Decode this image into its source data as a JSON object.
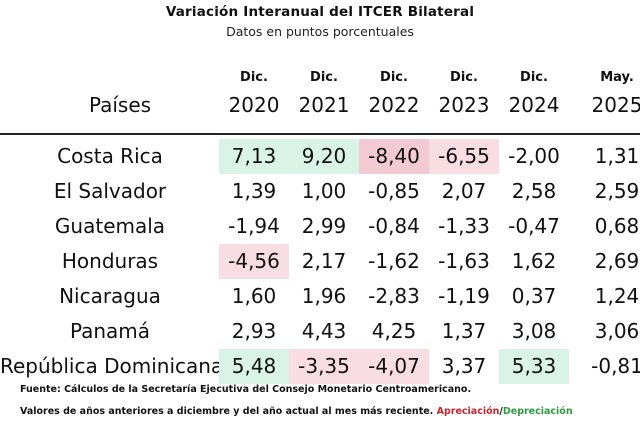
{
  "title": "Variación Interanual del ITCER Bilateral",
  "subtitle": "Datos en puntos porcentuales",
  "header": {
    "countries_label": "Países",
    "columns": [
      {
        "month": "Dic.",
        "year": "2020"
      },
      {
        "month": "Dic.",
        "year": "2021"
      },
      {
        "month": "Dic.",
        "year": "2022"
      },
      {
        "month": "Dic.",
        "year": "2023"
      },
      {
        "month": "Dic.",
        "year": "2024"
      },
      {
        "month": "May.",
        "year": "2025"
      }
    ]
  },
  "rows": [
    {
      "country": "Costa Rica",
      "values": [
        "7,13",
        "9,20",
        "-8,40",
        "-6,55",
        "-2,00",
        "1,31"
      ]
    },
    {
      "country": "El Salvador",
      "values": [
        "1,39",
        "1,00",
        "-0,85",
        "2,07",
        "2,58",
        "2,59"
      ]
    },
    {
      "country": "Guatemala",
      "values": [
        "-1,94",
        "2,99",
        "-0,84",
        "-1,33",
        "-0,47",
        "0,68"
      ]
    },
    {
      "country": "Honduras",
      "values": [
        "-4,56",
        "2,17",
        "-1,62",
        "-1,63",
        "1,62",
        "2,69"
      ]
    },
    {
      "country": "Nicaragua",
      "values": [
        "1,60",
        "1,96",
        "-2,83",
        "-1,19",
        "0,37",
        "1,24"
      ]
    },
    {
      "country": "Panamá",
      "values": [
        "2,93",
        "4,43",
        "4,25",
        "1,37",
        "3,08",
        "3,06"
      ]
    },
    {
      "country": "República Dominicana",
      "values": [
        "5,48",
        "-3,35",
        "-4,07",
        "3,37",
        "5,33",
        "-0,81"
      ]
    }
  ],
  "notes": {
    "source": "Fuente: Cálculos de la Secretaría Ejecutiva del Consejo Monetario Centroamericano.",
    "line2_prefix": "Valores de años anteriores a diciembre y del año actual al mes más reciente.",
    "legend_apreciacion": "Apreciación",
    "legend_sep": "/",
    "legend_depreciacion": "Depreciación"
  },
  "colors": {
    "apreciacion_fill": "#daf3e7",
    "depreciacion_fill": "#f8dde3",
    "apreciacion_text": "#c0262a",
    "depreciacion_text": "#2e9a3e"
  }
}
